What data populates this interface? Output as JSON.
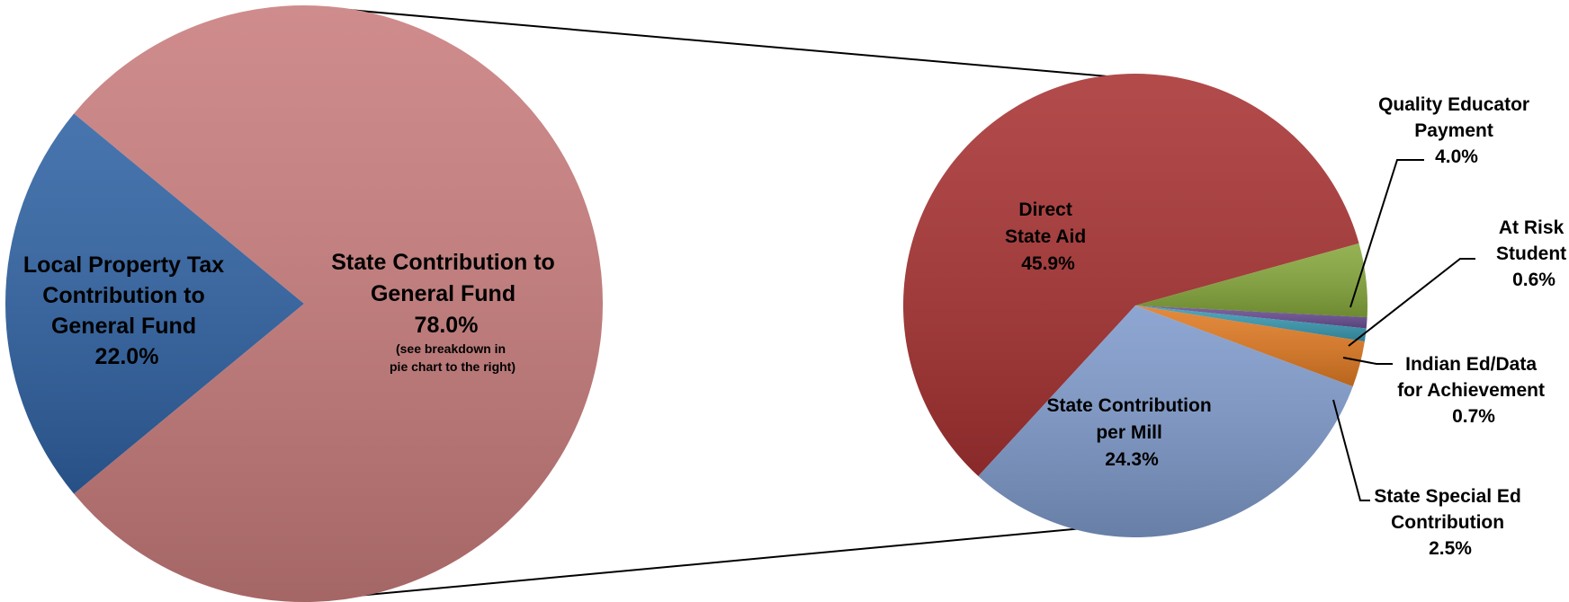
{
  "chart_data": [
    {
      "type": "pie",
      "slices": [
        {
          "label_lines": [
            "Local Property Tax",
            "Contribution to",
            "General Fund"
          ],
          "percent_label": "22.0%",
          "value": 22.0,
          "color": "#2f62a3"
        },
        {
          "label_lines": [
            "State Contribution to",
            "General Fund"
          ],
          "percent_label": "78.0%",
          "note_lines": [
            "(see breakdown in",
            "pie chart to the right)"
          ],
          "value": 78.0,
          "color": "#c97c7c"
        }
      ]
    },
    {
      "type": "pie",
      "slices": [
        {
          "label_lines": [
            "Direct",
            "State Aid"
          ],
          "percent_label": "45.9%",
          "value": 45.9,
          "color": "#a83232"
        },
        {
          "label_lines": [
            "Quality Educator",
            "Payment"
          ],
          "percent_label": "4.0%",
          "value": 4.0,
          "color": "#86a83c"
        },
        {
          "label_lines": [
            "At Risk",
            "Student"
          ],
          "percent_label": "0.6%",
          "value": 0.6,
          "color": "#6a4f93"
        },
        {
          "label_lines": [
            "Indian Ed/Data",
            "for Achievement"
          ],
          "percent_label": "0.7%",
          "value": 0.7,
          "color": "#3a9ab2"
        },
        {
          "label_lines": [
            "State Special Ed",
            "Contribution"
          ],
          "percent_label": "2.5%",
          "value": 2.5,
          "color": "#e07a22"
        },
        {
          "label_lines": [
            "State Contribution",
            "per Mill"
          ],
          "percent_label": "24.3%",
          "value": 24.3,
          "color": "#7e9acb"
        }
      ]
    }
  ]
}
